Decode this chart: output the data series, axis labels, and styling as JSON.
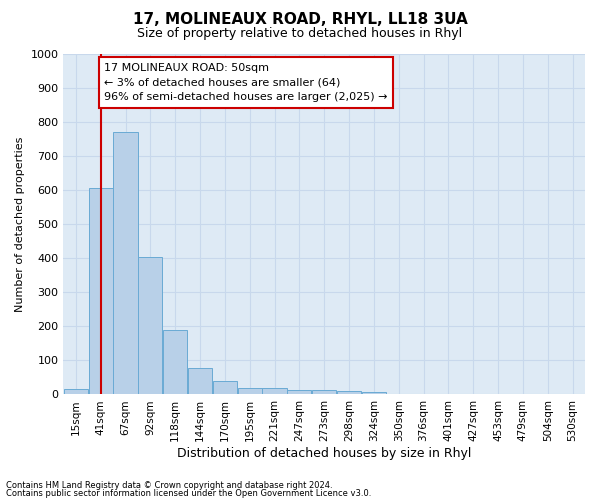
{
  "title": "17, MOLINEAUX ROAD, RHYL, LL18 3UA",
  "subtitle": "Size of property relative to detached houses in Rhyl",
  "xlabel": "Distribution of detached houses by size in Rhyl",
  "ylabel": "Number of detached properties",
  "footer_line1": "Contains HM Land Registry data © Crown copyright and database right 2024.",
  "footer_line2": "Contains public sector information licensed under the Open Government Licence v3.0.",
  "categories": [
    "15sqm",
    "41sqm",
    "67sqm",
    "92sqm",
    "118sqm",
    "144sqm",
    "170sqm",
    "195sqm",
    "221sqm",
    "247sqm",
    "273sqm",
    "298sqm",
    "324sqm",
    "350sqm",
    "376sqm",
    "401sqm",
    "427sqm",
    "453sqm",
    "479sqm",
    "504sqm",
    "530sqm"
  ],
  "bar_values": [
    15,
    605,
    770,
    405,
    190,
    78,
    40,
    20,
    18,
    13,
    14,
    9,
    8,
    0,
    0,
    0,
    0,
    0,
    0,
    0,
    0
  ],
  "bar_color": "#b8d0e8",
  "bar_edge_color": "#6aaad4",
  "ylim": [
    0,
    1000
  ],
  "yticks": [
    0,
    100,
    200,
    300,
    400,
    500,
    600,
    700,
    800,
    900,
    1000
  ],
  "grid_color": "#c8d8ec",
  "background_color": "#deeaf5",
  "annotation_text": "17 MOLINEAUX ROAD: 50sqm\n← 3% of detached houses are smaller (64)\n96% of semi-detached houses are larger (2,025) →",
  "annotation_box_color": "#ffffff",
  "annotation_box_edge_color": "#cc0000",
  "vline_x": 1,
  "vline_color": "#cc0000",
  "title_fontsize": 11,
  "subtitle_fontsize": 9,
  "ylabel_fontsize": 8,
  "xlabel_fontsize": 9,
  "tick_fontsize": 8,
  "annotation_fontsize": 8
}
